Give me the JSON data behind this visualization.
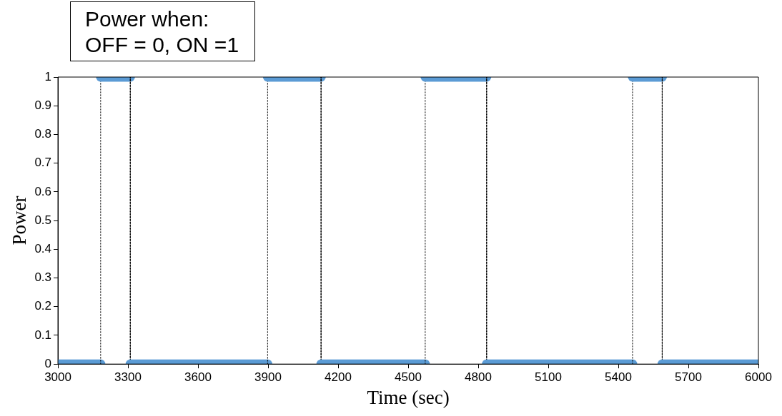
{
  "chart_data": {
    "type": "step",
    "xlabel": "Time (sec)",
    "ylabel": "Power",
    "annotations": [
      "Power when:\nOFF = 0, ON =1"
    ],
    "series": [
      {
        "color": "#5b9bd5",
        "x": [
          3000,
          3183,
          3310,
          3898,
          4127,
          4573,
          4836,
          5461,
          5588,
          6000
        ],
        "values": [
          0,
          1,
          0,
          1,
          0,
          1,
          0,
          1,
          0,
          0
        ]
      }
    ],
    "xlim": [
      3000,
      6000
    ],
    "xticks": [
      3000,
      3300,
      3600,
      3900,
      4200,
      4500,
      4800,
      5100,
      5400,
      5700,
      6000
    ],
    "ylim": [
      0,
      1
    ],
    "yticks": [
      0,
      0.1,
      0.2,
      0.3,
      0.4,
      0.5,
      0.6,
      0.7,
      0.8,
      0.9,
      1
    ],
    "legend": false
  }
}
